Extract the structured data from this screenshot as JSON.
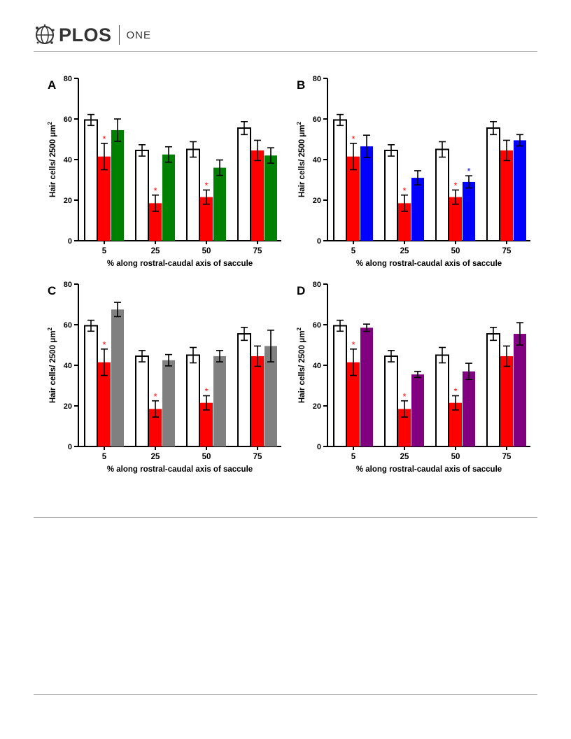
{
  "header": {
    "logo_word": "PLOS",
    "journal": "ONE"
  },
  "chart_data": [
    {
      "type": "bar",
      "panel_label": "A",
      "categories": [
        "5",
        "25",
        "50",
        "75"
      ],
      "series": [
        {
          "color": "#ffffff",
          "values": [
            59.5,
            44.5,
            45.0,
            55.5
          ],
          "errors": [
            2.7,
            2.8,
            3.8,
            3.2
          ],
          "stars": [
            false,
            false,
            false,
            false
          ]
        },
        {
          "color": "#ff0000",
          "values": [
            41.5,
            18.5,
            21.5,
            44.5
          ],
          "errors": [
            6.5,
            4.0,
            3.5,
            5.0
          ],
          "stars": [
            true,
            true,
            true,
            false
          ]
        },
        {
          "color": "#008000",
          "values": [
            54.5,
            42.5,
            36.0,
            42.0
          ],
          "errors": [
            5.5,
            3.8,
            3.8,
            3.8
          ],
          "stars": [
            false,
            false,
            false,
            false
          ]
        }
      ],
      "xlabel": "% along rostral-caudal axis of saccule",
      "ylabel_text": "Hair cells/ 2500 μm",
      "ylabel_sup": "2",
      "ylim": [
        0,
        80
      ],
      "yticks": [
        "0",
        "20",
        "40",
        "60",
        "80"
      ],
      "star_symbol": "*",
      "star_color": "#ff0000"
    },
    {
      "type": "bar",
      "panel_label": "B",
      "categories": [
        "5",
        "25",
        "50",
        "75"
      ],
      "series": [
        {
          "color": "#ffffff",
          "values": [
            59.5,
            44.5,
            45.0,
            55.5
          ],
          "errors": [
            2.7,
            2.8,
            3.8,
            3.2
          ],
          "stars": [
            false,
            false,
            false,
            false
          ]
        },
        {
          "color": "#ff0000",
          "values": [
            41.5,
            18.5,
            21.5,
            44.5
          ],
          "errors": [
            6.5,
            4.0,
            3.5,
            5.0
          ],
          "stars": [
            true,
            true,
            true,
            false
          ]
        },
        {
          "color": "#0000ff",
          "values": [
            46.5,
            31.0,
            29.0,
            49.5
          ],
          "errors": [
            5.5,
            3.5,
            3.0,
            2.8
          ],
          "stars": [
            false,
            false,
            true,
            false
          ],
          "star_color": "#0000ff"
        }
      ],
      "xlabel": "% along rostral-caudal axis of saccule",
      "ylabel_text": "Hair cells/ 2500 μm",
      "ylabel_sup": "2",
      "ylim": [
        0,
        80
      ],
      "yticks": [
        "0",
        "20",
        "40",
        "60",
        "80"
      ],
      "star_symbol": "*",
      "star_color": "#ff0000"
    },
    {
      "type": "bar",
      "panel_label": "C",
      "categories": [
        "5",
        "25",
        "50",
        "75"
      ],
      "series": [
        {
          "color": "#ffffff",
          "values": [
            59.5,
            44.5,
            45.0,
            55.5
          ],
          "errors": [
            2.7,
            2.8,
            3.8,
            3.2
          ],
          "stars": [
            false,
            false,
            false,
            false
          ]
        },
        {
          "color": "#ff0000",
          "values": [
            41.5,
            18.5,
            21.5,
            44.5
          ],
          "errors": [
            6.5,
            4.0,
            3.5,
            5.0
          ],
          "stars": [
            true,
            true,
            true,
            false
          ]
        },
        {
          "color": "#808080",
          "values": [
            67.5,
            42.5,
            44.5,
            49.5
          ],
          "errors": [
            3.5,
            2.8,
            2.8,
            7.8
          ],
          "stars": [
            false,
            false,
            false,
            false
          ]
        }
      ],
      "xlabel": "% along rostral-caudal axis of saccule",
      "ylabel_text": "Hair cells/ 2500 μm",
      "ylabel_sup": "2",
      "ylim": [
        0,
        80
      ],
      "yticks": [
        "0",
        "20",
        "40",
        "60",
        "80"
      ],
      "star_symbol": "*",
      "star_color": "#ff0000"
    },
    {
      "type": "bar",
      "panel_label": "D",
      "categories": [
        "5",
        "25",
        "50",
        "75"
      ],
      "series": [
        {
          "color": "#ffffff",
          "values": [
            59.5,
            44.5,
            45.0,
            55.5
          ],
          "errors": [
            2.7,
            2.8,
            3.8,
            3.2
          ],
          "stars": [
            false,
            false,
            false,
            false
          ]
        },
        {
          "color": "#ff0000",
          "values": [
            41.5,
            18.5,
            21.5,
            44.5
          ],
          "errors": [
            6.5,
            4.0,
            3.5,
            5.0
          ],
          "stars": [
            true,
            true,
            true,
            false
          ]
        },
        {
          "color": "#800080",
          "values": [
            58.5,
            35.5,
            37.0,
            55.5
          ],
          "errors": [
            1.8,
            1.5,
            4.0,
            5.5
          ],
          "stars": [
            false,
            false,
            false,
            false
          ]
        }
      ],
      "xlabel": "% along rostral-caudal axis of saccule",
      "ylabel_text": "Hair cells/ 2500 μm",
      "ylabel_sup": "2",
      "ylim": [
        0,
        80
      ],
      "yticks": [
        "0",
        "20",
        "40",
        "60",
        "80"
      ],
      "star_symbol": "*",
      "star_color": "#ff0000"
    }
  ]
}
